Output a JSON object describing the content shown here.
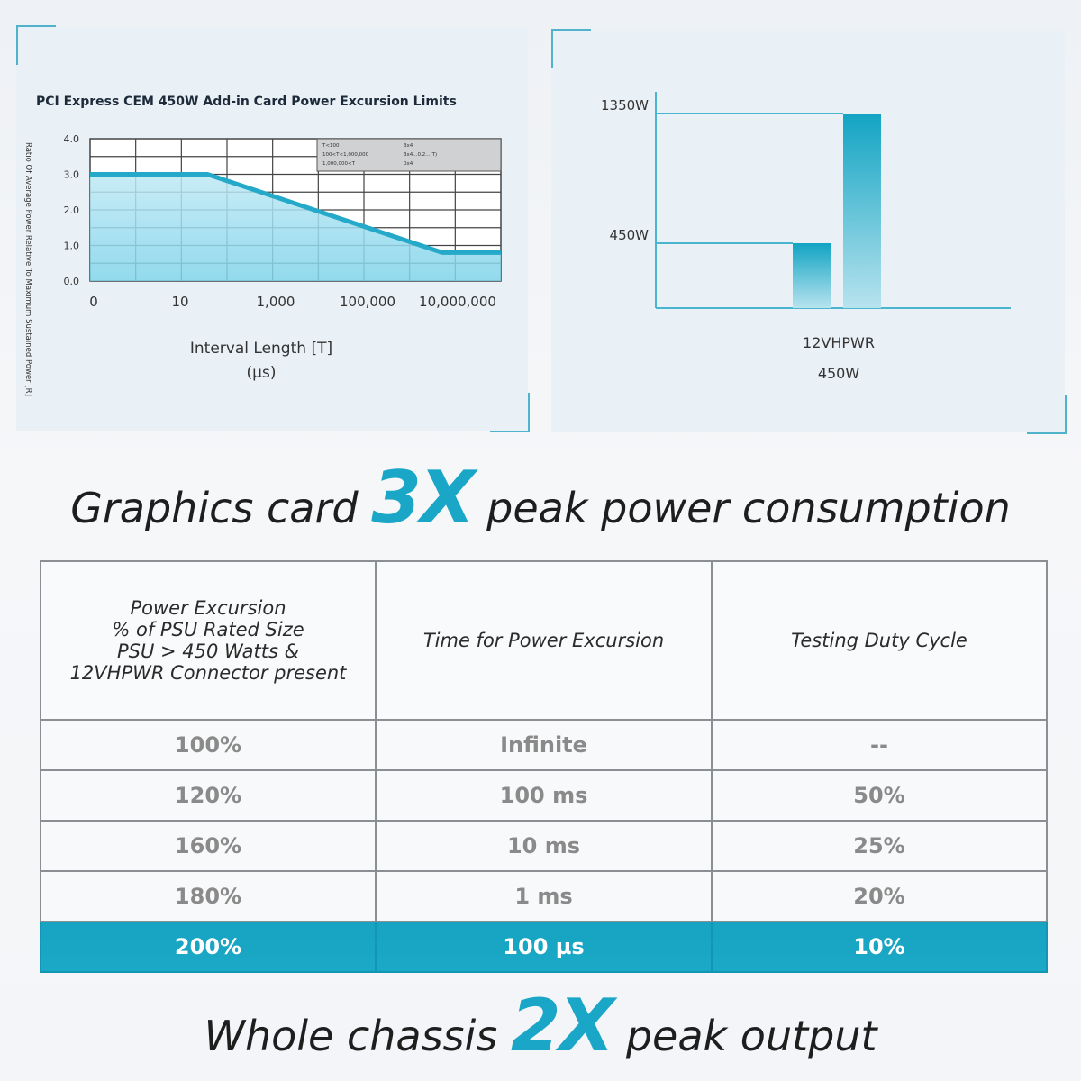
{
  "colors": {
    "accent": "#1aa7c7",
    "panel_bg": "#e9f0f6",
    "highlight_row": "#17a3c2"
  },
  "chart_data": [
    {
      "type": "line",
      "title": "PCI Express CEM 450W Add-in Card Power Excursion Limits",
      "xlabel": "Interval Length [T]",
      "xunit": "(µs)",
      "ylabel": "Ratio Of Average Power Relative To Maximum Sustained Power [R]",
      "xticks": [
        "0",
        "10",
        "1,000",
        "100,000",
        "10,000,000"
      ],
      "yticks": [
        "4.0",
        "3.0",
        "2.0",
        "1.0",
        "0.0"
      ],
      "ylim": [
        0,
        4
      ],
      "grid": true,
      "area_fill": true,
      "series": [
        {
          "x": [
            "0",
            "100",
            "1,000,000",
            "10,000,000"
          ],
          "values": [
            3.0,
            3.0,
            0.8,
            0.8
          ]
        }
      ],
      "legend_box": {
        "position": "top-right",
        "rows": [
          [
            "T<100",
            "3x4"
          ],
          [
            "100<T<1,000,000",
            "3x4...0.2...(T)"
          ],
          [
            "1,000,000<T",
            "0x4"
          ]
        ]
      }
    },
    {
      "type": "bar",
      "categories": [
        "12VHPWR",
        "450W"
      ],
      "values": [
        450,
        1350
      ],
      "y_markers": [
        "1350W",
        "450W"
      ],
      "ylim": [
        0,
        1500
      ]
    }
  ],
  "headline_top": {
    "prefix": "Graphics card ",
    "emphasis": "3X",
    "suffix": " peak power consumption"
  },
  "table": {
    "headers": [
      [
        "Power Excursion",
        "% of PSU Rated Size",
        "PSU > 450 Watts &",
        "12VHPWR Connector present"
      ],
      [
        "Time for Power Excursion"
      ],
      [
        "Testing Duty Cycle"
      ]
    ],
    "rows": [
      [
        "100%",
        "Infinite",
        "--"
      ],
      [
        "120%",
        "100 ms",
        "50%"
      ],
      [
        "160%",
        "10 ms",
        "25%"
      ],
      [
        "180%",
        "1 ms",
        "20%"
      ],
      [
        "200%",
        "100 µs",
        "10%"
      ]
    ],
    "highlighted_row": 4
  },
  "headline_bottom": {
    "prefix": "Whole chassis ",
    "emphasis": "2X",
    "suffix": " peak output"
  }
}
